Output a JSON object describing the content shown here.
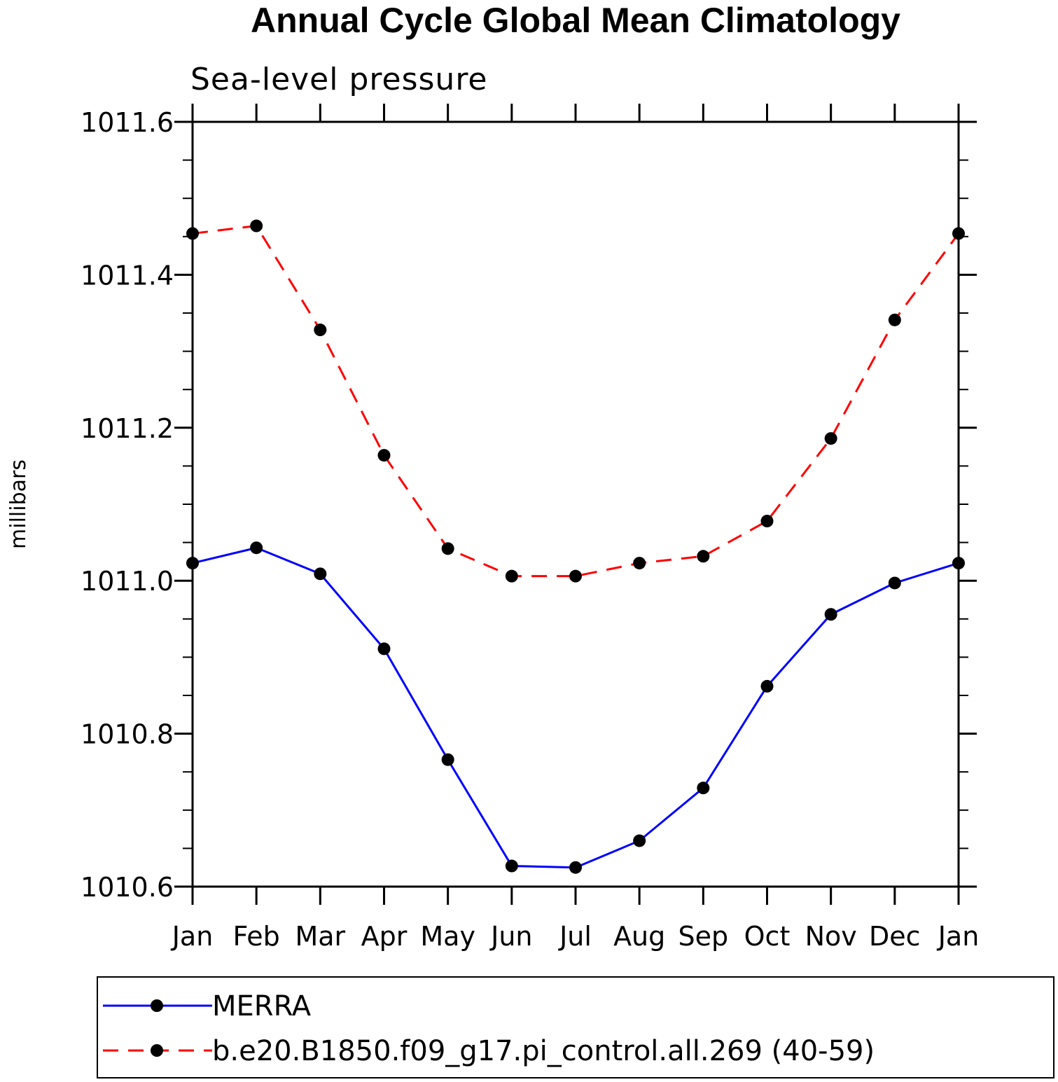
{
  "chart_data": {
    "type": "line",
    "title": "Annual Cycle Global Mean Climatology",
    "subtitle": "Sea-level pressure",
    "xlabel": "",
    "ylabel": "millibars",
    "categories": [
      "Jan",
      "Feb",
      "Mar",
      "Apr",
      "May",
      "Jun",
      "Jul",
      "Aug",
      "Sep",
      "Oct",
      "Nov",
      "Dec",
      "Jan"
    ],
    "ylim": [
      1010.6,
      1011.6
    ],
    "yticks": [
      "1010.6",
      "1010.8",
      "1011.0",
      "1011.2",
      "1011.4",
      "1011.6"
    ],
    "ytick_values": [
      1010.6,
      1010.8,
      1011.0,
      1011.2,
      1011.4,
      1011.6
    ],
    "series": [
      {
        "name": "MERRA",
        "color": "#0000ff",
        "style": "solid",
        "values": [
          1011.023,
          1011.043,
          1011.009,
          1010.911,
          1010.766,
          1010.627,
          1010.625,
          1010.66,
          1010.729,
          1010.862,
          1010.956,
          1010.997,
          1011.023
        ]
      },
      {
        "name": "b.e20.B1850.f09_g17.pi_control.all.269 (40-59)",
        "color": "#ff0000",
        "style": "dashed",
        "values": [
          1011.454,
          1011.464,
          1011.328,
          1011.164,
          1011.042,
          1011.006,
          1011.006,
          1011.023,
          1011.032,
          1011.078,
          1011.186,
          1011.341,
          1011.454
        ]
      }
    ],
    "legend_position": "bottom",
    "grid": false
  }
}
